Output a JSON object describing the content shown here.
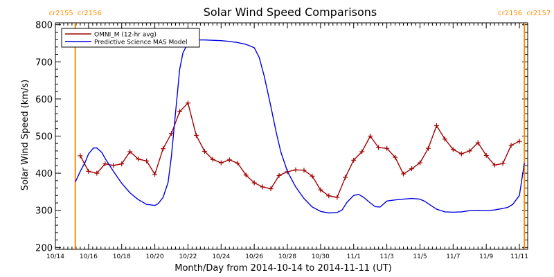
{
  "chart_data": {
    "type": "line",
    "title": "Solar Wind Speed Comparisons",
    "xlabel": "Month/Day from 2014-10-14 to 2014-11-11 (UT)",
    "ylabel": "Solar Wind Speed (km/s)",
    "x_unit": "days since 2014-10-14 00:00 UT",
    "xlim": [
      0,
      28.5
    ],
    "ylim": [
      195,
      805
    ],
    "yticks": [
      200,
      300,
      400,
      500,
      600,
      700,
      800
    ],
    "xticks": [
      {
        "x": 0,
        "label": "10/14"
      },
      {
        "x": 2,
        "label": "10/16"
      },
      {
        "x": 4,
        "label": "10/18"
      },
      {
        "x": 6,
        "label": "10/20"
      },
      {
        "x": 8,
        "label": "10/22"
      },
      {
        "x": 10,
        "label": "10/24"
      },
      {
        "x": 12,
        "label": "10/26"
      },
      {
        "x": 14,
        "label": "10/28"
      },
      {
        "x": 16,
        "label": "10/30"
      },
      {
        "x": 18,
        "label": "11/1"
      },
      {
        "x": 20,
        "label": "11/3"
      },
      {
        "x": 22,
        "label": "11/5"
      },
      {
        "x": 24,
        "label": "11/7"
      },
      {
        "x": 26,
        "label": "11/9"
      },
      {
        "x": 28,
        "label": "11/11"
      }
    ],
    "grid": false,
    "legend_position": "top-left",
    "colors": {
      "omni": "#a00000",
      "model": "#0000e0",
      "rotation": "#ff8c00"
    },
    "rotation_markers": [
      {
        "x": 1.2,
        "label_left": "cr2155",
        "label_right": "cr2156"
      },
      {
        "x": 28.3,
        "label_left": "cr2156",
        "label_right": "cr2157"
      }
    ],
    "series": [
      {
        "name": "OMNI_M (12-hr avg)",
        "color": "#a00000",
        "marker": "plus",
        "x": [
          1.5,
          2.0,
          2.5,
          3.0,
          3.5,
          4.0,
          4.5,
          5.0,
          5.5,
          6.0,
          6.5,
          7.0,
          7.5,
          8.0,
          8.5,
          9.0,
          9.5,
          10.0,
          10.5,
          11.0,
          11.5,
          12.0,
          12.5,
          13.0,
          13.5,
          14.0,
          14.5,
          15.0,
          15.5,
          16.0,
          16.5,
          17.0,
          17.5,
          18.0,
          18.5,
          19.0,
          19.5,
          20.0,
          20.5,
          21.0,
          21.5,
          22.0,
          22.5,
          23.0,
          23.5,
          24.0,
          24.5,
          25.0,
          25.5,
          26.0,
          26.5,
          27.0,
          27.5,
          28.0
        ],
        "values": [
          447,
          405,
          400,
          425,
          421,
          425,
          458,
          438,
          433,
          397,
          466,
          507,
          566,
          589,
          502,
          459,
          437,
          428,
          436,
          427,
          395,
          374,
          363,
          358,
          394,
          404,
          409,
          408,
          392,
          355,
          339,
          335,
          389,
          435,
          458,
          500,
          469,
          467,
          443,
          398,
          412,
          428,
          467,
          528,
          492,
          464,
          452,
          460,
          482,
          448,
          422,
          426,
          475,
          486
        ]
      },
      {
        "name": "Predictive Science MAS Model",
        "color": "#0000e0",
        "marker": "none",
        "x": [
          1.2,
          1.5,
          1.8,
          2.0,
          2.3,
          2.5,
          2.8,
          3.0,
          3.5,
          4.0,
          4.5,
          5.0,
          5.5,
          6.0,
          6.2,
          6.5,
          6.8,
          7.0,
          7.2,
          7.5,
          7.7,
          8.0,
          8.3,
          8.6,
          9.0,
          9.5,
          10.0,
          10.5,
          11.0,
          11.5,
          12.0,
          12.3,
          12.6,
          13.0,
          13.3,
          13.6,
          14.0,
          14.5,
          15.0,
          15.5,
          16.0,
          16.5,
          17.0,
          17.3,
          17.6,
          18.0,
          18.3,
          18.6,
          19.0,
          19.3,
          19.6,
          20.0,
          20.5,
          21.0,
          21.5,
          22.0,
          22.3,
          22.6,
          23.0,
          23.5,
          24.0,
          24.5,
          25.0,
          25.5,
          26.0,
          26.5,
          27.0,
          27.3,
          27.6,
          28.0,
          28.3
        ],
        "values": [
          376,
          405,
          430,
          452,
          468,
          468,
          456,
          440,
          405,
          373,
          347,
          329,
          316,
          313,
          318,
          335,
          375,
          445,
          540,
          680,
          725,
          750,
          758,
          759,
          759,
          758,
          757,
          755,
          752,
          747,
          738,
          712,
          662,
          580,
          515,
          458,
          405,
          363,
          332,
          309,
          297,
          293,
          294,
          301,
          322,
          340,
          343,
          335,
          320,
          310,
          309,
          325,
          328,
          330,
          332,
          330,
          324,
          315,
          303,
          296,
          295,
          296,
          299,
          300,
          299,
          301,
          305,
          308,
          316,
          340,
          427
        ]
      }
    ]
  }
}
